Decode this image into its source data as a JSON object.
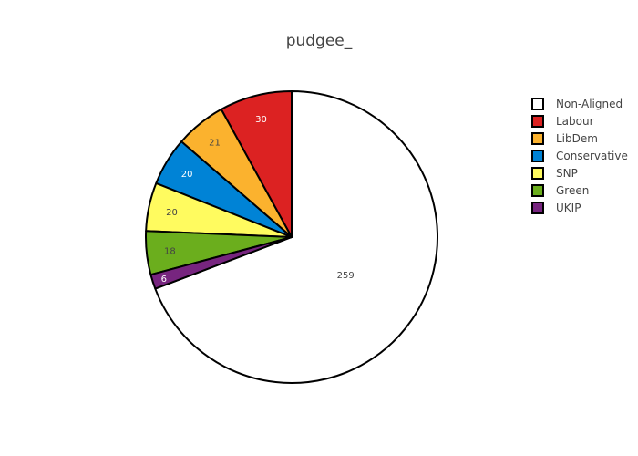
{
  "chart_data": {
    "type": "pie",
    "title": "pudgee_",
    "categories": [
      "Non-Aligned",
      "Labour",
      "LibDem",
      "Conservative",
      "SNP",
      "Green",
      "UKIP"
    ],
    "values": [
      259,
      30,
      21,
      20,
      20,
      18,
      6
    ],
    "colors": [
      "#ffffff",
      "#dc2222",
      "#fbb22e",
      "#0083d6",
      "#fffb5f",
      "#6bae1d",
      "#77257f"
    ],
    "label_colors": [
      "#444444",
      "#ffffff",
      "#444444",
      "#ffffff",
      "#444444",
      "#444444",
      "#ffffff"
    ],
    "legend_placement": "top-right",
    "direction": "clockwise",
    "start": "top"
  }
}
